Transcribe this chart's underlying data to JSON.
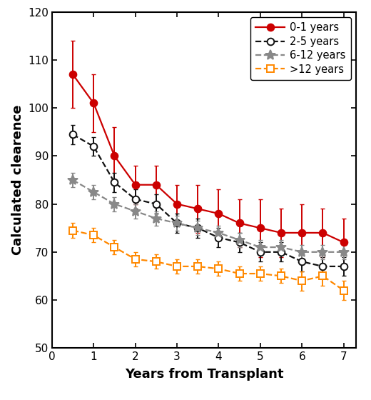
{
  "title": "",
  "xlabel": "Years from Transplant",
  "ylabel": "Calculated clearence",
  "xlim": [
    0,
    7.3
  ],
  "ylim": [
    50,
    120
  ],
  "yticks": [
    50,
    60,
    70,
    80,
    90,
    100,
    110,
    120
  ],
  "xticks": [
    0,
    1,
    2,
    3,
    4,
    5,
    6,
    7
  ],
  "series": [
    {
      "label": "0-1 years",
      "color": "#cc0000",
      "linestyle": "-",
      "marker": "o",
      "markerfacecolor": "#cc0000",
      "markeredgecolor": "#cc0000",
      "markersize": 7,
      "linewidth": 1.6,
      "x": [
        0.5,
        1.0,
        1.5,
        2.0,
        2.5,
        3.0,
        3.5,
        4.0,
        4.5,
        5.0,
        5.5,
        6.0,
        6.5,
        7.0
      ],
      "y": [
        107,
        101,
        90,
        84,
        84,
        80,
        79,
        78,
        76,
        75,
        74,
        74,
        74,
        72
      ],
      "yerr_lo": [
        7,
        6,
        6,
        4,
        4,
        4,
        5,
        5,
        5,
        6,
        5,
        6,
        5,
        5
      ],
      "yerr_hi": [
        7,
        6,
        6,
        4,
        4,
        4,
        5,
        5,
        5,
        6,
        5,
        6,
        5,
        5
      ]
    },
    {
      "label": "2-5 years",
      "color": "#111111",
      "linestyle": "--",
      "marker": "o",
      "markerfacecolor": "#ffffff",
      "markeredgecolor": "#111111",
      "markersize": 7,
      "linewidth": 1.6,
      "x": [
        0.5,
        1.0,
        1.5,
        2.0,
        2.5,
        3.0,
        3.5,
        4.0,
        4.5,
        5.0,
        5.5,
        6.0,
        6.5,
        7.0
      ],
      "y": [
        94.5,
        92,
        84.5,
        81,
        80,
        76,
        75,
        73,
        72,
        70,
        70,
        68,
        67,
        67
      ],
      "yerr_lo": [
        2,
        2,
        2,
        2,
        2,
        2,
        2,
        2,
        2,
        2,
        2,
        2,
        2,
        2
      ],
      "yerr_hi": [
        2,
        2,
        2,
        2,
        2,
        2,
        2,
        2,
        2,
        2,
        2,
        2,
        2,
        2
      ]
    },
    {
      "label": "6-12 years",
      "color": "#888888",
      "linestyle": "--",
      "marker": "*",
      "markerfacecolor": "#888888",
      "markeredgecolor": "#888888",
      "markersize": 10,
      "linewidth": 1.6,
      "x": [
        0.5,
        1.0,
        1.5,
        2.0,
        2.5,
        3.0,
        3.5,
        4.0,
        4.5,
        5.0,
        5.5,
        6.0,
        6.5,
        7.0
      ],
      "y": [
        85,
        82.5,
        80,
        78.5,
        77,
        76,
        75,
        74,
        72.5,
        71,
        71,
        70,
        70,
        70
      ],
      "yerr_lo": [
        1.5,
        1.5,
        1.5,
        1.5,
        1.5,
        1.5,
        1.5,
        1.5,
        1.5,
        1.5,
        1.5,
        1.5,
        1.5,
        1.5
      ],
      "yerr_hi": [
        1.5,
        1.5,
        1.5,
        1.5,
        1.5,
        1.5,
        1.5,
        1.5,
        1.5,
        1.5,
        1.5,
        1.5,
        1.5,
        1.5
      ]
    },
    {
      "label": ">12 years",
      "color": "#ff8800",
      "linestyle": "--",
      "marker": "s",
      "markerfacecolor": "#ffffff",
      "markeredgecolor": "#ff8800",
      "markersize": 7,
      "linewidth": 1.6,
      "x": [
        0.5,
        1.0,
        1.5,
        2.0,
        2.5,
        3.0,
        3.5,
        4.0,
        4.5,
        5.0,
        5.5,
        6.0,
        6.5,
        7.0
      ],
      "y": [
        74.5,
        73.5,
        71,
        68.5,
        68,
        67,
        67,
        66.5,
        65.5,
        65.5,
        65,
        64,
        65,
        62
      ],
      "yerr_lo": [
        1.5,
        1.5,
        1.5,
        1.5,
        1.5,
        1.5,
        1.5,
        1.5,
        1.5,
        1.5,
        1.5,
        2,
        2,
        2
      ],
      "yerr_hi": [
        1.5,
        1.5,
        1.5,
        1.5,
        1.5,
        1.5,
        1.5,
        1.5,
        1.5,
        1.5,
        1.5,
        2,
        2,
        2
      ]
    }
  ],
  "legend_loc": "upper right",
  "background_color": "#ffffff",
  "fontsize_axis_label": 13,
  "fontsize_tick": 11,
  "fontsize_legend": 10.5
}
